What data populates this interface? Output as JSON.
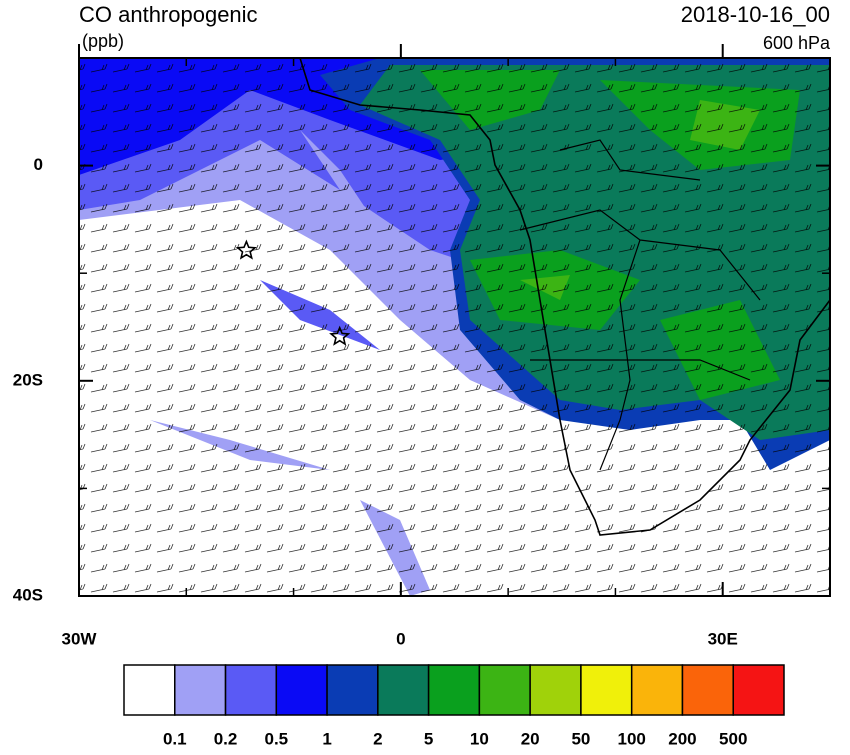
{
  "header": {
    "title": "CO anthropogenic",
    "units": "(ppb)",
    "date": "2018-10-16_00",
    "level": "600 hPa"
  },
  "map": {
    "lonlim": [
      -30,
      40
    ],
    "latlim": [
      -40,
      10
    ],
    "lon_ticks": [
      {
        "value": -30,
        "label": "30W"
      },
      0,
      {
        "value": 30,
        "label": "30E"
      }
    ],
    "lat_ticks": [
      0,
      {
        "value": -20,
        "label": "20S"
      },
      {
        "value": -40,
        "label": "40S"
      }
    ],
    "lon_minor_ticks": [
      -20,
      -10,
      10,
      20,
      40
    ],
    "lat_minor_ticks": [
      10,
      -10,
      -30
    ],
    "markers": [
      {
        "lon": -14.4,
        "lat": -7.9
      },
      {
        "lon": -5.7,
        "lat": -15.9
      }
    ]
  },
  "colorbar": {
    "colors": [
      "#ffffff",
      "#a0a0f5",
      "#5a5af5",
      "#0a0af5",
      "#0a3cb4",
      "#0a7a5a",
      "#0aa01e",
      "#3cb414",
      "#a0d20a",
      "#f0f00a",
      "#fab40a",
      "#fa640a",
      "#f51414"
    ],
    "levels": [
      0.1,
      0.2,
      0.5,
      1,
      2,
      5,
      10,
      20,
      50,
      100,
      200,
      500
    ]
  }
}
